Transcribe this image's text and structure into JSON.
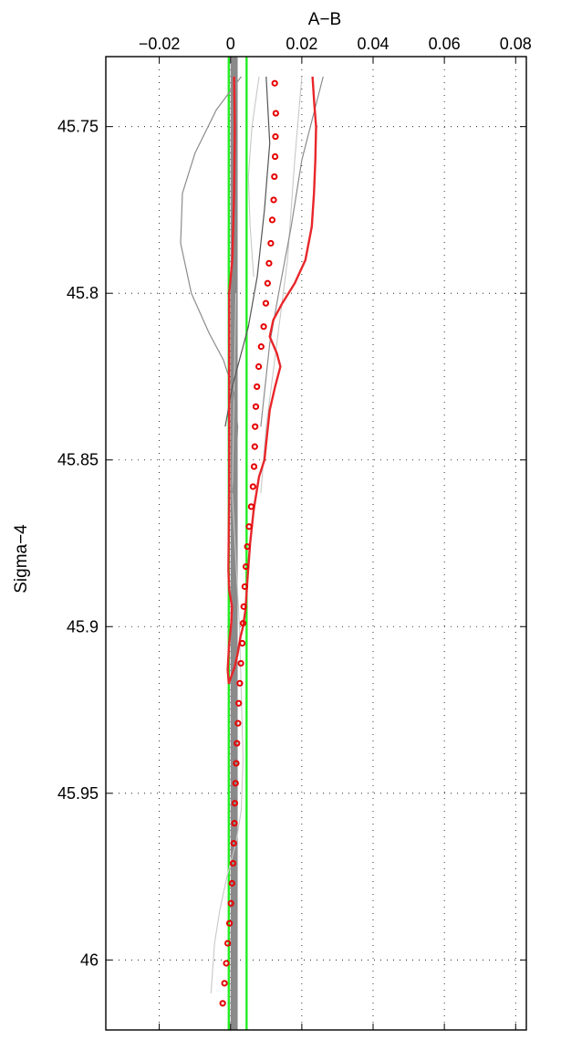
{
  "chart_data": {
    "type": "line",
    "title": "",
    "xlabel": "A−B",
    "ylabel": "Sigma−4",
    "x_axis_position": "top",
    "y_axis_reversed": true,
    "xlim": [
      -0.035,
      0.083
    ],
    "ylim": [
      45.729,
      46.021
    ],
    "x_ticks": [
      -0.02,
      0,
      0.02,
      0.04,
      0.06,
      0.08
    ],
    "x_tick_labels": [
      "−0.02",
      "0",
      "0.02",
      "0.04",
      "0.06",
      "0.08"
    ],
    "y_ticks": [
      45.75,
      45.8,
      45.85,
      45.9,
      45.95,
      46
    ],
    "y_tick_labels": [
      "45.75",
      "45.8",
      "45.85",
      "45.9",
      "45.95",
      "46"
    ],
    "grid": true,
    "colors": {
      "red_line": "#e8262a",
      "red_markers": "#e60000",
      "green_lines": "#22ee22",
      "gray_band": "#8a8a8a",
      "dark_gray": "#555555",
      "mid_gray": "#8c8c8c",
      "light_gray": "#c8c8c8"
    },
    "vertical_lines": [
      -0.0005,
      0.0045
    ],
    "band": {
      "x": [
        0.0,
        0.002
      ],
      "y": [
        45.73,
        46.02
      ]
    },
    "series": [
      {
        "role": "red-line",
        "points": [
          [
            0.023,
            45.735
          ],
          [
            0.0235,
            45.743
          ],
          [
            0.024,
            45.75
          ],
          [
            0.0238,
            45.76
          ],
          [
            0.0234,
            45.77
          ],
          [
            0.0228,
            45.78
          ],
          [
            0.021,
            45.79
          ],
          [
            0.018,
            45.797
          ],
          [
            0.0145,
            45.803
          ],
          [
            0.012,
            45.808
          ],
          [
            0.011,
            45.813
          ],
          [
            0.013,
            45.818
          ],
          [
            0.014,
            45.822
          ],
          [
            0.0125,
            45.828
          ],
          [
            0.011,
            45.835
          ],
          [
            0.01,
            45.845
          ],
          [
            0.0095,
            45.85
          ],
          [
            0.008,
            45.855
          ],
          [
            0.0065,
            45.865
          ],
          [
            0.0055,
            45.875
          ],
          [
            0.0048,
            45.885
          ],
          [
            0.0042,
            45.895
          ],
          [
            0.0035,
            45.9
          ],
          [
            0.0028,
            45.903
          ],
          [
            0.002,
            45.908
          ],
          [
            0.0012,
            45.912
          ],
          [
            0.0002,
            45.915
          ],
          [
            -0.0005,
            45.917
          ],
          [
            -0.0008,
            45.913
          ],
          [
            -0.0004,
            45.905
          ],
          [
            0.0002,
            45.899
          ],
          [
            0.0004,
            45.894
          ],
          [
            -0.0004,
            45.889
          ],
          [
            -0.0006,
            45.883
          ],
          [
            -0.0004,
            45.86
          ],
          [
            -0.0004,
            45.83
          ],
          [
            -0.0004,
            45.8
          ],
          [
            0.0005,
            45.79
          ],
          [
            0.001,
            45.77
          ],
          [
            0.0012,
            45.75
          ],
          [
            0.001,
            45.735
          ]
        ]
      },
      {
        "role": "red-markers",
        "points": [
          [
            0.0124,
            45.737
          ],
          [
            0.0127,
            45.746
          ],
          [
            0.0126,
            45.753
          ],
          [
            0.0125,
            45.759
          ],
          [
            0.0123,
            45.765
          ],
          [
            0.0121,
            45.772
          ],
          [
            0.0117,
            45.778
          ],
          [
            0.0113,
            45.785
          ],
          [
            0.0108,
            45.791
          ],
          [
            0.0104,
            45.797
          ],
          [
            0.0099,
            45.803
          ],
          [
            0.0093,
            45.81
          ],
          [
            0.0086,
            45.816
          ],
          [
            0.0079,
            45.822
          ],
          [
            0.0074,
            45.828
          ],
          [
            0.0071,
            45.834
          ],
          [
            0.0069,
            45.84
          ],
          [
            0.0068,
            45.846
          ],
          [
            0.0066,
            45.852
          ],
          [
            0.0063,
            45.858
          ],
          [
            0.0058,
            45.864
          ],
          [
            0.0052,
            45.87
          ],
          [
            0.0047,
            45.876
          ],
          [
            0.0043,
            45.882
          ],
          [
            0.004,
            45.888
          ],
          [
            0.0037,
            45.894
          ],
          [
            0.0035,
            45.899
          ],
          [
            0.0033,
            45.905
          ],
          [
            0.0029,
            45.911
          ],
          [
            0.0026,
            45.917
          ],
          [
            0.0023,
            45.923
          ],
          [
            0.0021,
            45.929
          ],
          [
            0.0018,
            45.935
          ],
          [
            0.0016,
            45.941
          ],
          [
            0.0014,
            45.947
          ],
          [
            0.0012,
            45.953
          ],
          [
            0.0011,
            45.959
          ],
          [
            0.0009,
            45.965
          ],
          [
            0.0007,
            45.971
          ],
          [
            0.0004,
            45.977
          ],
          [
            0.0001,
            45.983
          ],
          [
            -0.0003,
            45.989
          ],
          [
            -0.0008,
            45.995
          ],
          [
            -0.0012,
            46.001
          ],
          [
            -0.0017,
            46.007
          ],
          [
            -0.0022,
            46.013
          ]
        ]
      },
      {
        "role": "dark-gray",
        "points": [
          [
            0.01,
            45.735
          ],
          [
            0.011,
            45.755
          ],
          [
            0.0095,
            45.775
          ],
          [
            0.0075,
            45.795
          ],
          [
            0.005,
            45.81
          ],
          [
            0.0025,
            45.82
          ],
          [
            0.0005,
            45.828
          ],
          [
            -0.0005,
            45.834
          ],
          [
            -0.0015,
            45.84
          ]
        ]
      },
      {
        "role": "mid-gray",
        "points": [
          [
            0.003,
            45.735
          ],
          [
            -0.004,
            45.745
          ],
          [
            -0.01,
            45.758
          ],
          [
            -0.0135,
            45.77
          ],
          [
            -0.014,
            45.785
          ],
          [
            -0.011,
            45.8
          ],
          [
            -0.006,
            45.812
          ],
          [
            -0.002,
            45.82
          ],
          [
            0.001,
            45.83
          ],
          [
            0.002,
            45.84
          ],
          [
            0.0015,
            45.85
          ],
          [
            0.0005,
            45.86
          ]
        ]
      },
      {
        "role": "mid-gray",
        "points": [
          [
            0.026,
            45.735
          ],
          [
            0.02,
            45.76
          ],
          [
            0.017,
            45.78
          ],
          [
            0.0135,
            45.8
          ],
          [
            0.011,
            45.815
          ],
          [
            0.0085,
            45.84
          ]
        ]
      },
      {
        "role": "light-gray",
        "points": [
          [
            0.02,
            45.735
          ],
          [
            0.018,
            45.76
          ],
          [
            0.016,
            45.79
          ],
          [
            0.013,
            45.815
          ],
          [
            0.01,
            45.84
          ],
          [
            0.0085,
            45.86
          ]
        ]
      },
      {
        "role": "light-gray",
        "points": [
          [
            0.008,
            45.735
          ],
          [
            0.006,
            45.75
          ],
          [
            0.005,
            45.765
          ],
          [
            0.0055,
            45.78
          ],
          [
            0.0065,
            45.795
          ]
        ]
      },
      {
        "role": "light-gray",
        "points": [
          [
            0.0015,
            45.8
          ],
          [
            0.001,
            45.83
          ],
          [
            0.0005,
            45.86
          ],
          [
            0.0015,
            45.88
          ],
          [
            0.0025,
            45.9
          ],
          [
            0.003,
            45.92
          ],
          [
            0.0035,
            45.94
          ],
          [
            0.003,
            45.955
          ],
          [
            0.0015,
            45.965
          ],
          [
            -0.001,
            45.975
          ],
          [
            -0.003,
            45.985
          ],
          [
            -0.0045,
            45.995
          ],
          [
            -0.0055,
            46.01
          ]
        ]
      }
    ]
  }
}
